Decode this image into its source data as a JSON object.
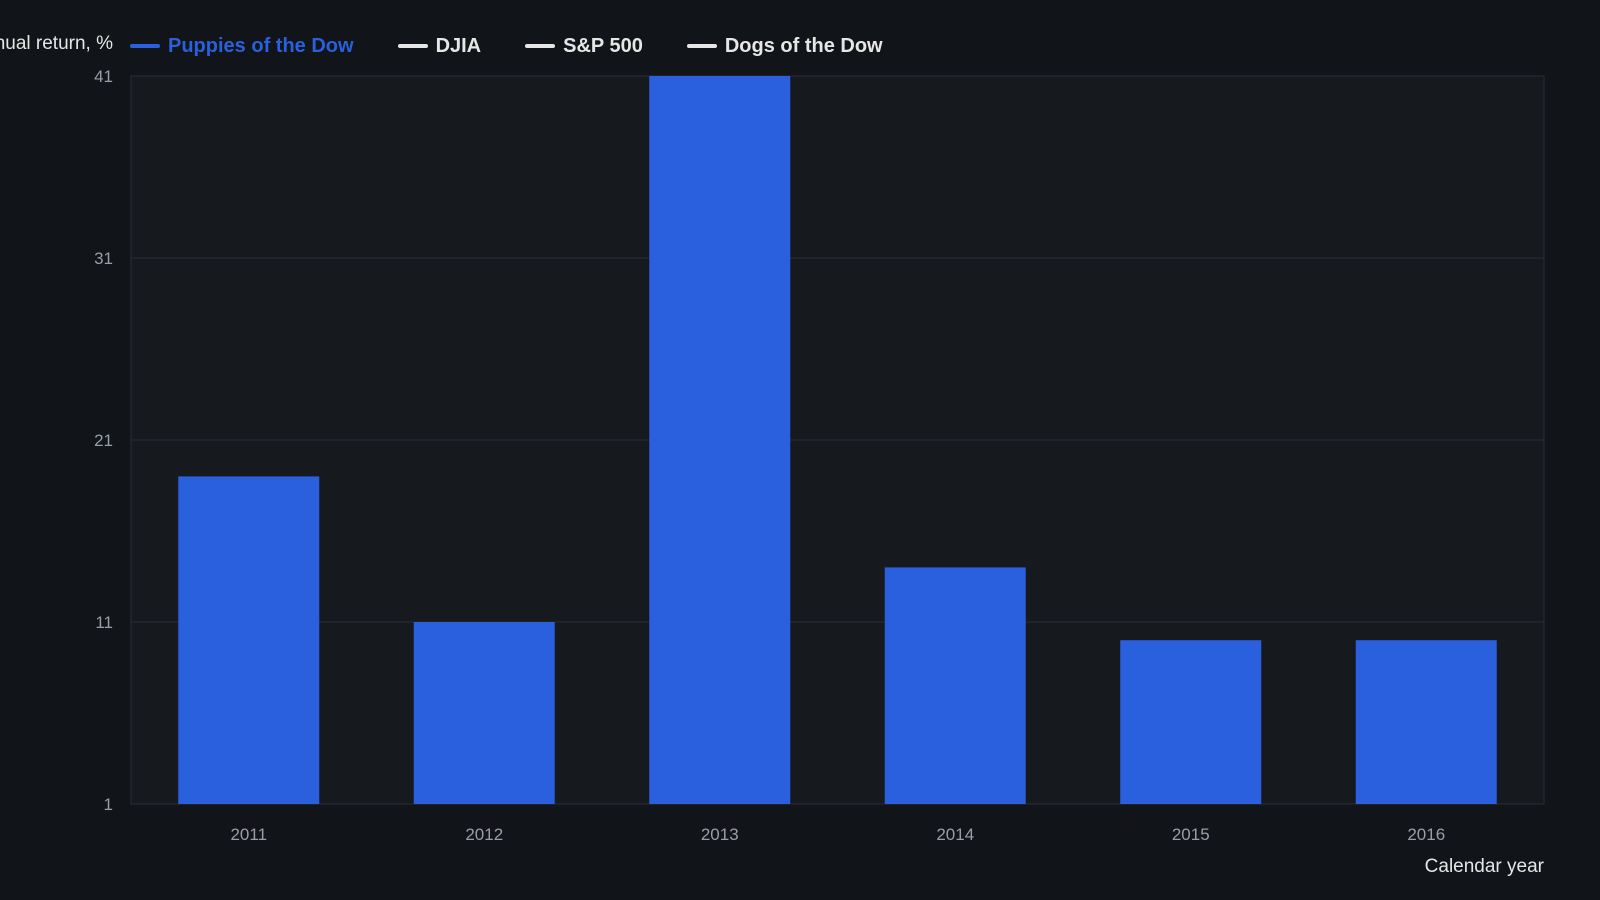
{
  "chart_data": {
    "type": "bar",
    "ylabel": "Annual return, %",
    "xlabel": "Calendar year",
    "categories": [
      "2011",
      "2012",
      "2013",
      "2014",
      "2015",
      "2016"
    ],
    "series": [
      {
        "name": "Puppies of the Dow",
        "values": [
          19,
          11,
          41,
          14,
          10,
          10
        ]
      }
    ],
    "ylim": [
      1,
      41
    ],
    "yticks": [
      1,
      11,
      21,
      31,
      41
    ],
    "grid": true,
    "legend_position": "top-left",
    "legend": [
      {
        "label": "Puppies of the Dow",
        "color": "#2a5fde",
        "active": true
      },
      {
        "label": "DJIA",
        "color": "#e6e6e6",
        "active": false
      },
      {
        "label": "S&P 500",
        "color": "#e6e6e6",
        "active": false
      },
      {
        "label": "Dogs of the Dow",
        "color": "#e6e6e6",
        "active": false
      }
    ],
    "colors": {
      "bar": "#2a5fde",
      "background": "#111418",
      "plot_background": "#16191e",
      "grid": "#2b2f35"
    }
  }
}
